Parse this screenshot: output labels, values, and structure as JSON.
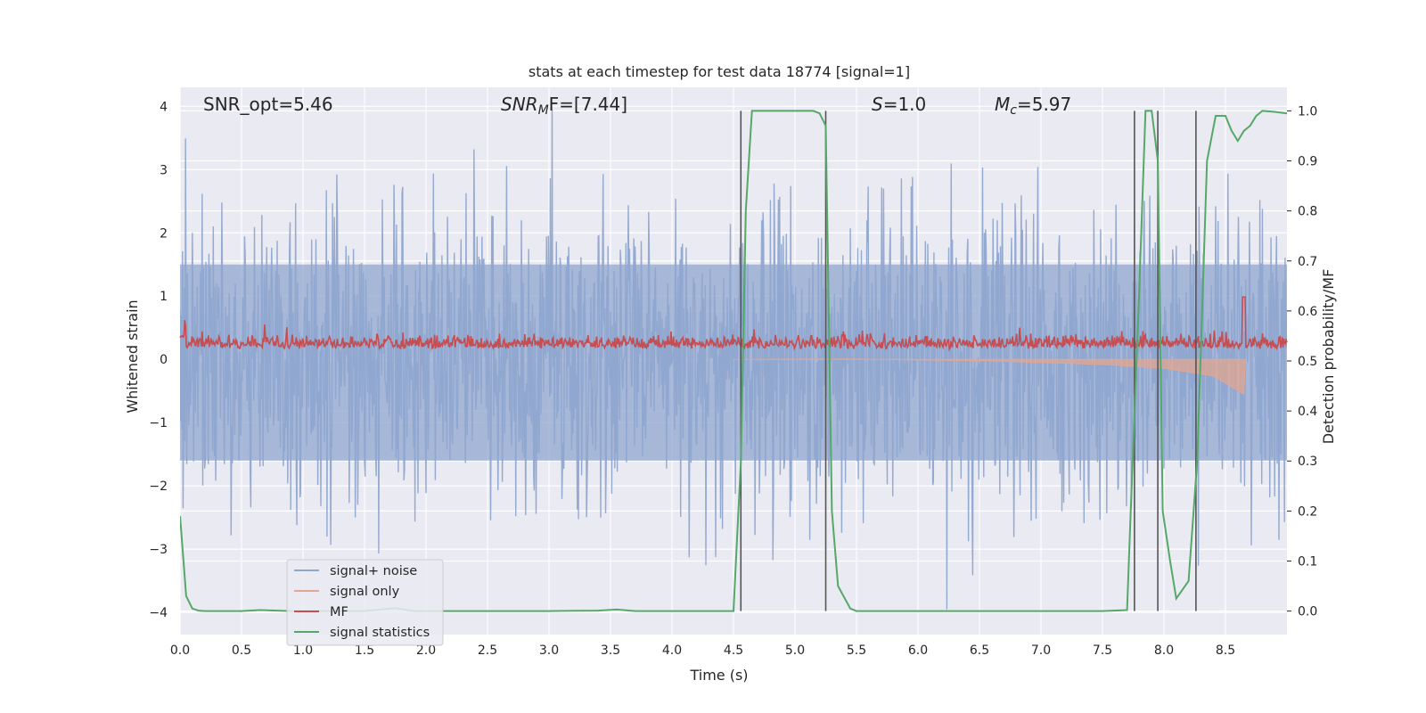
{
  "chart_data": {
    "type": "line",
    "title": "stats at each timestep for test data 18774 [signal=1]",
    "xlabel": "Time (s)",
    "ylabel_left": "Whitened strain",
    "ylabel_right": "Detection probability/MF",
    "xlim": [
      0.0,
      9.0
    ],
    "ylim_left": [
      -4.35,
      4.3
    ],
    "ylim_right": [
      -0.047,
      1.047
    ],
    "x_ticks": [
      "0.0",
      "0.5",
      "1.0",
      "1.5",
      "2.0",
      "2.5",
      "3.0",
      "3.5",
      "4.0",
      "4.5",
      "5.0",
      "5.5",
      "6.0",
      "6.5",
      "7.0",
      "7.5",
      "8.0",
      "8.5"
    ],
    "y_ticks_left": [
      "−4",
      "−3",
      "−2",
      "−1",
      "0",
      "1",
      "2",
      "3",
      "4"
    ],
    "y_ticks_right": [
      "0.0",
      "0.1",
      "0.2",
      "0.3",
      "0.4",
      "0.5",
      "0.6",
      "0.7",
      "0.8",
      "0.9",
      "1.0"
    ],
    "grid": true,
    "legend_position": "lower-left",
    "annotations": {
      "snr_opt": "SNR_opt=5.46",
      "snr_mf_main": "SNR",
      "snr_mf_sub": "M",
      "snr_mf_rest": "F=[7.44]",
      "s_main": "S",
      "s_rest": "=1.0",
      "mc_main": "M",
      "mc_sub": "c",
      "mc_rest": "=5.97"
    },
    "vertical_lines_x": [
      4.56,
      5.25,
      7.76,
      7.95,
      8.26
    ],
    "series": [
      {
        "name": "signal+ noise",
        "color": "#8fa6cf",
        "description": "whitened strain, approx. unit-variance noise over 0–9 s"
      },
      {
        "name": "signal only",
        "color": "#e3a590",
        "x": [
          4.5,
          5.5,
          6.5,
          7.0,
          7.5,
          8.0,
          8.4,
          8.65,
          8.66
        ],
        "y_left": [
          0.0,
          0.005,
          -0.02,
          -0.05,
          -0.08,
          -0.14,
          -0.26,
          -0.55,
          0.0
        ]
      },
      {
        "name": "MF",
        "color": "#c44e52",
        "description": "matched-filter output on right axis, ~0.51–0.56 with spike to 0.63 at 8.65 s"
      },
      {
        "name": "signal statistics",
        "color": "#55a868",
        "x": [
          0.0,
          0.05,
          0.1,
          0.15,
          0.2,
          0.25,
          0.5,
          0.65,
          0.9,
          1.2,
          1.5,
          1.75,
          1.9,
          2.2,
          2.5,
          3.0,
          3.4,
          3.55,
          3.7,
          4.0,
          4.3,
          4.5,
          4.56,
          4.6,
          4.65,
          5.0,
          5.15,
          5.2,
          5.25,
          5.3,
          5.35,
          5.45,
          5.5,
          6.0,
          7.0,
          7.5,
          7.7,
          7.73,
          7.8,
          7.85,
          7.9,
          7.95,
          7.99,
          8.05,
          8.1,
          8.2,
          8.27,
          8.35,
          8.42,
          8.5,
          8.55,
          8.6,
          8.65,
          8.7,
          8.75,
          8.8,
          8.9,
          9.0
        ],
        "y_right": [
          0.19,
          0.03,
          0.005,
          0.001,
          0.0,
          0.0,
          0.0,
          0.002,
          0.0,
          0.0,
          0.0,
          0.006,
          0.0,
          0.0,
          0.0,
          0.0,
          0.001,
          0.003,
          0.0,
          0.0,
          0.0,
          0.0,
          0.3,
          0.8,
          1.0,
          1.0,
          1.0,
          0.995,
          0.97,
          0.2,
          0.05,
          0.005,
          0.0,
          0.0,
          0.0,
          0.0,
          0.002,
          0.2,
          0.65,
          1.0,
          1.0,
          0.9,
          0.2,
          0.1,
          0.025,
          0.06,
          0.3,
          0.9,
          0.99,
          0.99,
          0.96,
          0.94,
          0.96,
          0.97,
          0.99,
          1.0,
          0.998,
          0.995
        ]
      }
    ]
  }
}
